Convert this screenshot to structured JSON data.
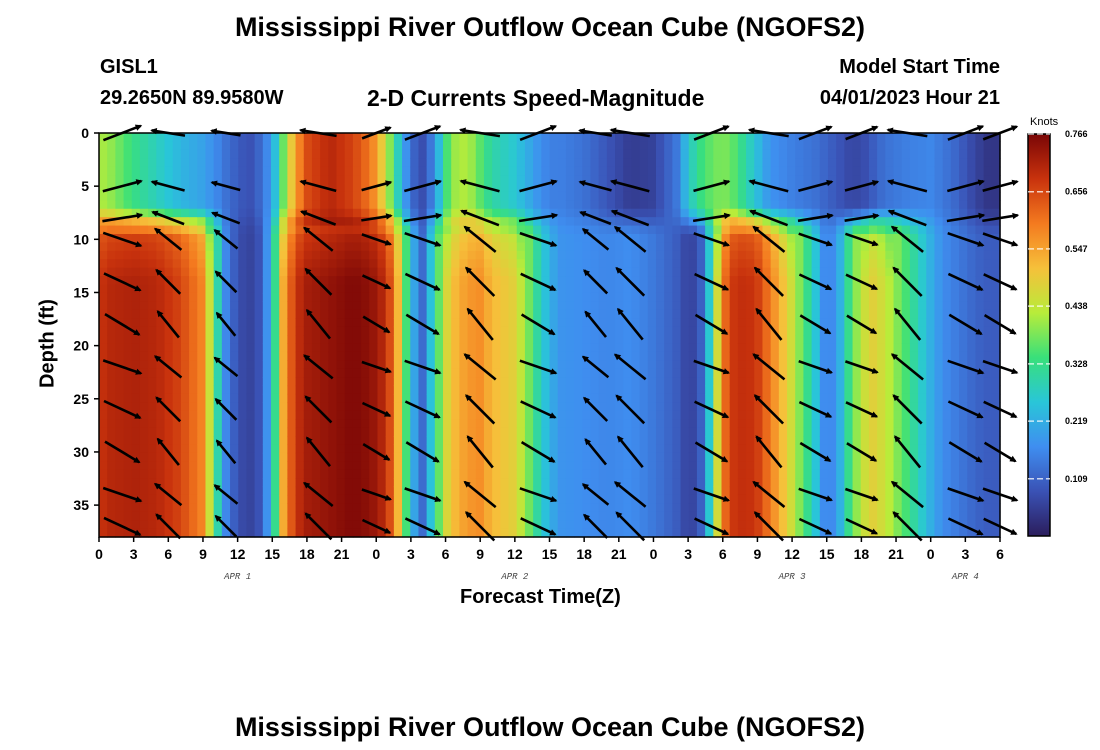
{
  "header": {
    "title": "Mississippi River Outflow Ocean Cube (NGOFS2)",
    "station": "GISL1",
    "coords": "29.2650N  89.9580W",
    "subtitle": "2-D Currents Speed-Magnitude",
    "model_start_label": "Model Start Time",
    "model_start_value": "04/01/2023 Hour 21"
  },
  "footer": {
    "title_repeat": "Mississippi River Outflow Ocean Cube (NGOFS2)"
  },
  "colors": {
    "arrow": "#000000",
    "scale": [
      "#2b1d5c",
      "#3a52b5",
      "#3f8ef0",
      "#29c6d8",
      "#39e07a",
      "#b8ec3a",
      "#f6c03a",
      "#f47a1f",
      "#c8320d",
      "#7a0606"
    ]
  },
  "chart_data": {
    "type": "heatmap",
    "title": "2-D Currents Speed-Magnitude",
    "xlabel": "Forecast Time(Z)",
    "ylabel": "Depth (ft)",
    "units": "Knots",
    "x_tick_labels": [
      "0",
      "3",
      "6",
      "9",
      "12",
      "15",
      "18",
      "21",
      "0",
      "3",
      "6",
      "9",
      "12",
      "15",
      "18",
      "21",
      "0",
      "3",
      "6",
      "9",
      "12",
      "15",
      "18",
      "21",
      "0",
      "3",
      "6"
    ],
    "x_range_hours": [
      0,
      78
    ],
    "y_ticks": [
      0,
      5,
      10,
      15,
      20,
      25,
      30,
      35
    ],
    "ylim": [
      0,
      38
    ],
    "date_labels": [
      {
        "label": "APR 1",
        "hour": 12
      },
      {
        "label": "APR 2",
        "hour": 36
      },
      {
        "label": "APR 3",
        "hour": 60
      },
      {
        "label": "APR 4",
        "hour": 75
      }
    ],
    "colorbar": {
      "min": 0.0,
      "max": 0.766,
      "ticks": [
        0.766,
        0.656,
        0.547,
        0.438,
        0.328,
        0.219,
        0.109
      ]
    },
    "profile_hours": [
      0,
      1,
      3,
      5,
      7,
      9,
      10,
      11,
      12,
      13,
      14,
      15,
      16,
      17,
      18,
      20,
      22,
      23,
      24,
      25,
      26,
      27,
      28,
      29,
      30,
      31,
      32,
      33,
      34,
      36,
      37,
      38,
      39,
      40,
      42,
      44,
      46,
      48,
      50,
      51,
      52,
      53,
      54,
      55,
      56,
      57,
      58,
      60,
      62,
      63,
      64,
      65,
      66,
      67,
      68,
      70,
      72,
      73,
      74,
      75,
      76,
      77,
      78
    ],
    "surface_speed": [
      0.42,
      0.4,
      0.33,
      0.28,
      0.23,
      0.2,
      0.17,
      0.13,
      0.1,
      0.08,
      0.12,
      0.2,
      0.38,
      0.55,
      0.65,
      0.7,
      0.66,
      0.62,
      0.56,
      0.42,
      0.26,
      0.12,
      0.08,
      0.16,
      0.34,
      0.42,
      0.42,
      0.36,
      0.3,
      0.26,
      0.22,
      0.18,
      0.15,
      0.15,
      0.13,
      0.09,
      0.05,
      0.06,
      0.14,
      0.26,
      0.33,
      0.37,
      0.39,
      0.36,
      0.3,
      0.24,
      0.18,
      0.15,
      0.13,
      0.11,
      0.09,
      0.07,
      0.07,
      0.1,
      0.13,
      0.15,
      0.16,
      0.14,
      0.12,
      0.09,
      0.06,
      0.04,
      0.04
    ],
    "deep_speed": [
      0.68,
      0.7,
      0.71,
      0.7,
      0.66,
      0.58,
      0.35,
      0.16,
      0.08,
      0.06,
      0.09,
      0.25,
      0.55,
      0.68,
      0.72,
      0.74,
      0.76,
      0.75,
      0.73,
      0.68,
      0.5,
      0.24,
      0.12,
      0.3,
      0.46,
      0.53,
      0.56,
      0.57,
      0.52,
      0.48,
      0.4,
      0.3,
      0.22,
      0.18,
      0.17,
      0.16,
      0.17,
      0.14,
      0.1,
      0.06,
      0.08,
      0.3,
      0.6,
      0.68,
      0.69,
      0.67,
      0.6,
      0.45,
      0.26,
      0.14,
      0.2,
      0.34,
      0.44,
      0.48,
      0.45,
      0.34,
      0.22,
      0.17,
      0.15,
      0.13,
      0.11,
      0.1,
      0.1
    ],
    "arrow_depths_ft": [
      0,
      5,
      8,
      10,
      14,
      18,
      22,
      26,
      30,
      34,
      37
    ],
    "arrow_hours": [
      2,
      6,
      11,
      19,
      24,
      28,
      33,
      38,
      43,
      46,
      53,
      58,
      62,
      66,
      70,
      75,
      78
    ]
  }
}
